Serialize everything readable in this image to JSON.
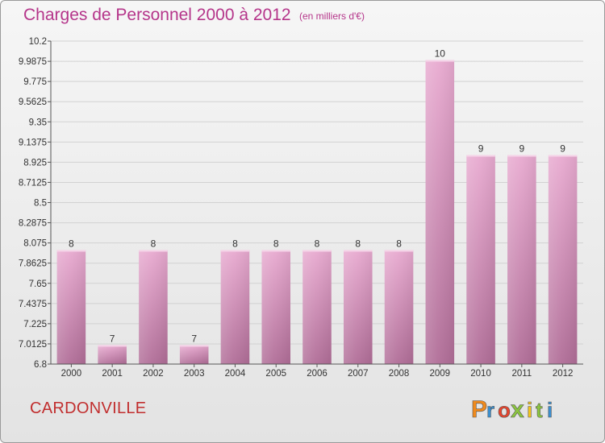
{
  "title": "Charges de Personnel 2000 à 2012",
  "subtitle": "(en milliers d'€)",
  "commune": "CARDONVILLE",
  "logo": {
    "letters": [
      "P",
      "r",
      "o",
      "x",
      "i",
      "t",
      "i"
    ],
    "colors": [
      "#f08a1c",
      "#3a8fd0",
      "#e8442c",
      "#8bc53f",
      "#f6c51b",
      "#8bc53f",
      "#3a8fd0"
    ]
  },
  "colors": {
    "title": "#b5358a",
    "commune": "#c12e2e",
    "bar_top": "#e8aad0",
    "bar_bottom": "#b06d97"
  },
  "chart_data": {
    "type": "bar",
    "title": "Charges de Personnel 2000 à 2012",
    "subtitle": "(en milliers d'€)",
    "categories": [
      "2000",
      "2001",
      "2002",
      "2003",
      "2004",
      "2005",
      "2006",
      "2007",
      "2008",
      "2009",
      "2010",
      "2011",
      "2012"
    ],
    "values": [
      8,
      7,
      8,
      7,
      8,
      8,
      8,
      8,
      8,
      10,
      9,
      9,
      9
    ],
    "value_labels": [
      "8",
      "7",
      "8",
      "7",
      "8",
      "8",
      "8",
      "8",
      "8",
      "10",
      "9",
      "9",
      "9"
    ],
    "ylim": [
      6.8,
      10.2
    ],
    "yticks": [
      6.8,
      7.0125,
      7.225,
      7.4375,
      7.65,
      7.8625,
      8.075,
      8.2875,
      8.5,
      8.7125,
      8.925,
      9.1375,
      9.35,
      9.5625,
      9.775,
      9.9875,
      10.2
    ],
    "ytick_labels": [
      "6.8",
      "7.0125",
      "7.225",
      "7.4375",
      "7.65",
      "7.8625",
      "8.075",
      "8.2875",
      "8.5",
      "8.7125",
      "8.925",
      "9.1375",
      "9.35",
      "9.5625",
      "9.775",
      "9.9875",
      "10.2"
    ],
    "grid": true
  }
}
